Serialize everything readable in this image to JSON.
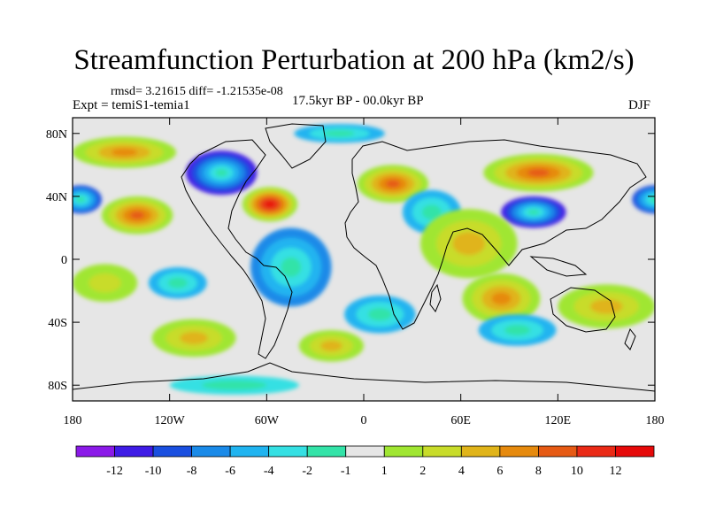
{
  "chart_data": {
    "type": "heatmap",
    "title": "Streamfunction Perturbation at 200 hPa (km2/s)",
    "stats_text": "rmsd= 3.21615   diff= -1.21535e-08",
    "left_label": "Expt = temiS1-temia1",
    "center_label": "17.5kyr BP - 00.0kyr BP",
    "right_label": "DJF",
    "x_range": [
      -180,
      180
    ],
    "y_range": [
      -90,
      90
    ],
    "x_ticks": [
      {
        "value": -180,
        "label": "180"
      },
      {
        "value": -120,
        "label": "120W"
      },
      {
        "value": -60,
        "label": "60W"
      },
      {
        "value": 0,
        "label": "0"
      },
      {
        "value": 60,
        "label": "60E"
      },
      {
        "value": 120,
        "label": "120E"
      },
      {
        "value": 180,
        "label": "180"
      }
    ],
    "y_ticks": [
      {
        "value": 80,
        "label": "80N"
      },
      {
        "value": 40,
        "label": "40N"
      },
      {
        "value": 0,
        "label": "0"
      },
      {
        "value": -40,
        "label": "40S"
      },
      {
        "value": -80,
        "label": "80S"
      }
    ],
    "colorbar": {
      "labels": [
        "-12",
        "-10",
        "-8",
        "-6",
        "-4",
        "-2",
        "-1",
        "1",
        "2",
        "4",
        "6",
        "8",
        "10",
        "12"
      ],
      "colors": [
        "#8b1ae8",
        "#3f1ce6",
        "#1a4fe0",
        "#1a8ae8",
        "#20b4f0",
        "#35e0e3",
        "#33e3a8",
        "#e6e6e6",
        "#a0e632",
        "#c8dc2a",
        "#e0b41a",
        "#e68a0e",
        "#e65a14",
        "#ea2a16",
        "#e60a0a"
      ]
    },
    "anomalies": [
      {
        "lon": -88,
        "lat": 55,
        "rlon": 22,
        "rlat": 14,
        "value": -10
      },
      {
        "lon": -58,
        "lat": 35,
        "rlon": 17,
        "rlat": 11,
        "value": 12
      },
      {
        "lon": -175,
        "lat": 38,
        "rlon": 13,
        "rlat": 9,
        "value": -8
      },
      {
        "lon": -140,
        "lat": 28,
        "rlon": 22,
        "rlat": 12,
        "value": 8
      },
      {
        "lon": -148,
        "lat": 68,
        "rlon": 32,
        "rlat": 10,
        "value": 6
      },
      {
        "lon": -15,
        "lat": 80,
        "rlon": 28,
        "rlat": 6,
        "value": -4
      },
      {
        "lon": 18,
        "lat": 48,
        "rlon": 22,
        "rlat": 12,
        "value": 8
      },
      {
        "lon": 42,
        "lat": 30,
        "rlon": 18,
        "rlat": 14,
        "value": -4
      },
      {
        "lon": 105,
        "lat": 30,
        "rlon": 20,
        "rlat": 10,
        "value": -10
      },
      {
        "lon": 108,
        "lat": 55,
        "rlon": 34,
        "rlat": 12,
        "value": 8
      },
      {
        "lon": 180,
        "lat": 38,
        "rlon": 14,
        "rlat": 9,
        "value": -8
      },
      {
        "lon": 65,
        "lat": 10,
        "rlon": 30,
        "rlat": 22,
        "value": 4
      },
      {
        "lon": 85,
        "lat": -25,
        "rlon": 24,
        "rlat": 16,
        "value": 6
      },
      {
        "lon": -45,
        "lat": -5,
        "rlon": 25,
        "rlat": 25,
        "value": -6
      },
      {
        "lon": 150,
        "lat": -30,
        "rlon": 30,
        "rlat": 14,
        "value": 4
      },
      {
        "lon": 95,
        "lat": -45,
        "rlon": 24,
        "rlat": 10,
        "value": -4
      },
      {
        "lon": -105,
        "lat": -50,
        "rlon": 26,
        "rlat": 12,
        "value": 4
      },
      {
        "lon": -115,
        "lat": -15,
        "rlon": 18,
        "rlat": 10,
        "value": -4
      },
      {
        "lon": -20,
        "lat": -55,
        "rlon": 20,
        "rlat": 10,
        "value": 4
      },
      {
        "lon": 10,
        "lat": -35,
        "rlon": 22,
        "rlat": 12,
        "value": -4
      },
      {
        "lon": -160,
        "lat": -15,
        "rlon": 20,
        "rlat": 12,
        "value": 2
      },
      {
        "lon": -80,
        "lat": -80,
        "rlon": 40,
        "rlat": 6,
        "value": -2
      }
    ]
  }
}
